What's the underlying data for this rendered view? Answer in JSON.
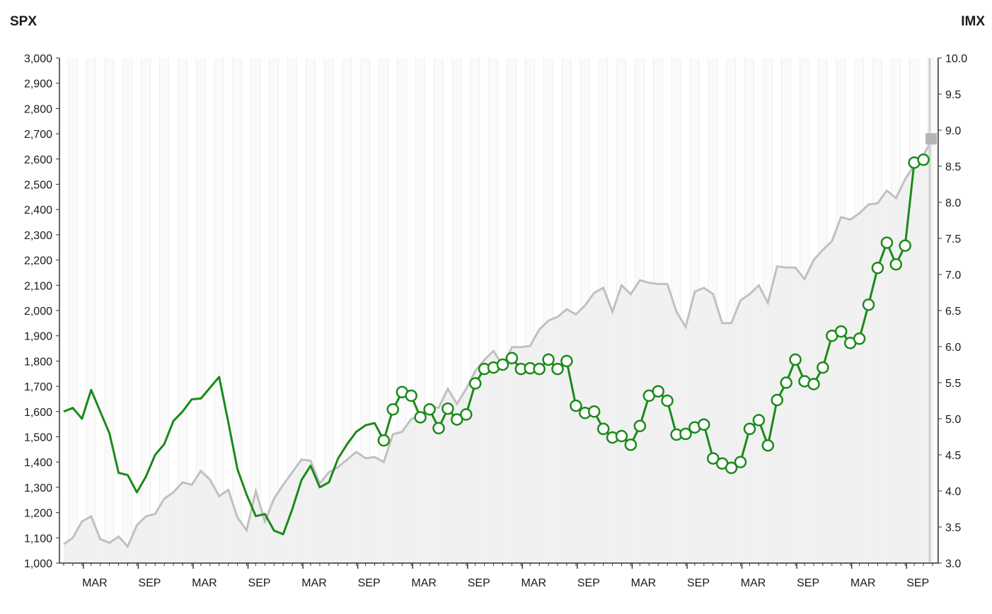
{
  "chart_data": {
    "type": "line",
    "left_axis_title": "SPX",
    "right_axis_title": "IMX",
    "left_ylim": [
      1000,
      3000
    ],
    "left_ticks": [
      "1,000",
      "1,100",
      "1,200",
      "1,300",
      "1,400",
      "1,500",
      "1,600",
      "1,700",
      "1,800",
      "1,900",
      "2,000",
      "2,100",
      "2,200",
      "2,300",
      "2,400",
      "2,500",
      "2,600",
      "2,700",
      "2,800",
      "2,900",
      "3,000"
    ],
    "right_ylim": [
      3.0,
      10.0
    ],
    "right_ticks": [
      "3.0",
      "3.5",
      "4.0",
      "4.5",
      "5.0",
      "5.5",
      "6.0",
      "6.5",
      "7.0",
      "7.5",
      "8.0",
      "8.5",
      "9.0",
      "9.5",
      "10.0"
    ],
    "x_tick_labels": [
      "MAR",
      "SEP",
      "MAR",
      "SEP",
      "MAR",
      "SEP",
      "MAR",
      "SEP",
      "MAR",
      "SEP",
      "MAR",
      "SEP",
      "MAR",
      "SEP",
      "MAR",
      "SEP"
    ],
    "grid": "vertical monthly bands",
    "colors": {
      "spx_line": "#c0c0c0",
      "spx_fill": "#f0f0f0",
      "imx_line": "#1a8a1a",
      "marker_fill": "#ffffff",
      "last_marker": "#b5b5b5"
    },
    "series": [
      {
        "axis": "left",
        "style": "area",
        "values": [
          1075,
          1100,
          1165,
          1185,
          1095,
          1080,
          1105,
          1065,
          1150,
          1185,
          1195,
          1255,
          1280,
          1320,
          1310,
          1365,
          1330,
          1265,
          1290,
          1180,
          1130,
          1285,
          1165,
          1255,
          1310,
          1360,
          1410,
          1405,
          1315,
          1360,
          1380,
          1410,
          1440,
          1415,
          1420,
          1400,
          1510,
          1520,
          1570,
          1585,
          1620,
          1615,
          1690,
          1630,
          1690,
          1760,
          1805,
          1840,
          1780,
          1855,
          1855,
          1860,
          1925,
          1960,
          1975,
          2005,
          1985,
          2020,
          2070,
          2090,
          1995,
          2100,
          2065,
          2120,
          2110,
          2105,
          2105,
          1995,
          1935,
          2075,
          2090,
          2065,
          1950,
          1950,
          2040,
          2065,
          2100,
          2030,
          2175,
          2170,
          2170,
          2125,
          2200,
          2240,
          2275,
          2370,
          2360,
          2385,
          2420,
          2425,
          2475,
          2445,
          2520,
          2575,
          2615,
          2680
        ]
      },
      {
        "axis": "right",
        "style": "line",
        "values": [
          5.1,
          5.15,
          5.0,
          5.4,
          5.1,
          4.8,
          4.25,
          4.22,
          3.98,
          4.2,
          4.5,
          4.65,
          4.97,
          5.1,
          5.27,
          5.28,
          5.43,
          5.58,
          4.95,
          4.3,
          3.95,
          3.65,
          3.68,
          3.45,
          3.4,
          3.75,
          4.15,
          4.35,
          4.05,
          4.12,
          4.45,
          4.65,
          4.82,
          4.91,
          4.94,
          4.7,
          5.13,
          5.37,
          5.32,
          5.02,
          5.13,
          4.87,
          5.14,
          4.99,
          5.06,
          5.49,
          5.69,
          5.71,
          5.75,
          5.84,
          5.69,
          5.7,
          5.69,
          5.82,
          5.69,
          5.8,
          5.18,
          5.08,
          5.1,
          4.86,
          4.74,
          4.76,
          4.64,
          4.9,
          5.32,
          5.38,
          5.25,
          4.78,
          4.79,
          4.88,
          4.92,
          4.45,
          4.38,
          4.32,
          4.4,
          4.86,
          4.98,
          4.63,
          5.26,
          5.5,
          5.82,
          5.52,
          5.48,
          5.71,
          6.15,
          6.21,
          6.05,
          6.11,
          6.58,
          7.09,
          7.44,
          7.14,
          7.4,
          8.55,
          8.59
        ]
      }
    ]
  }
}
